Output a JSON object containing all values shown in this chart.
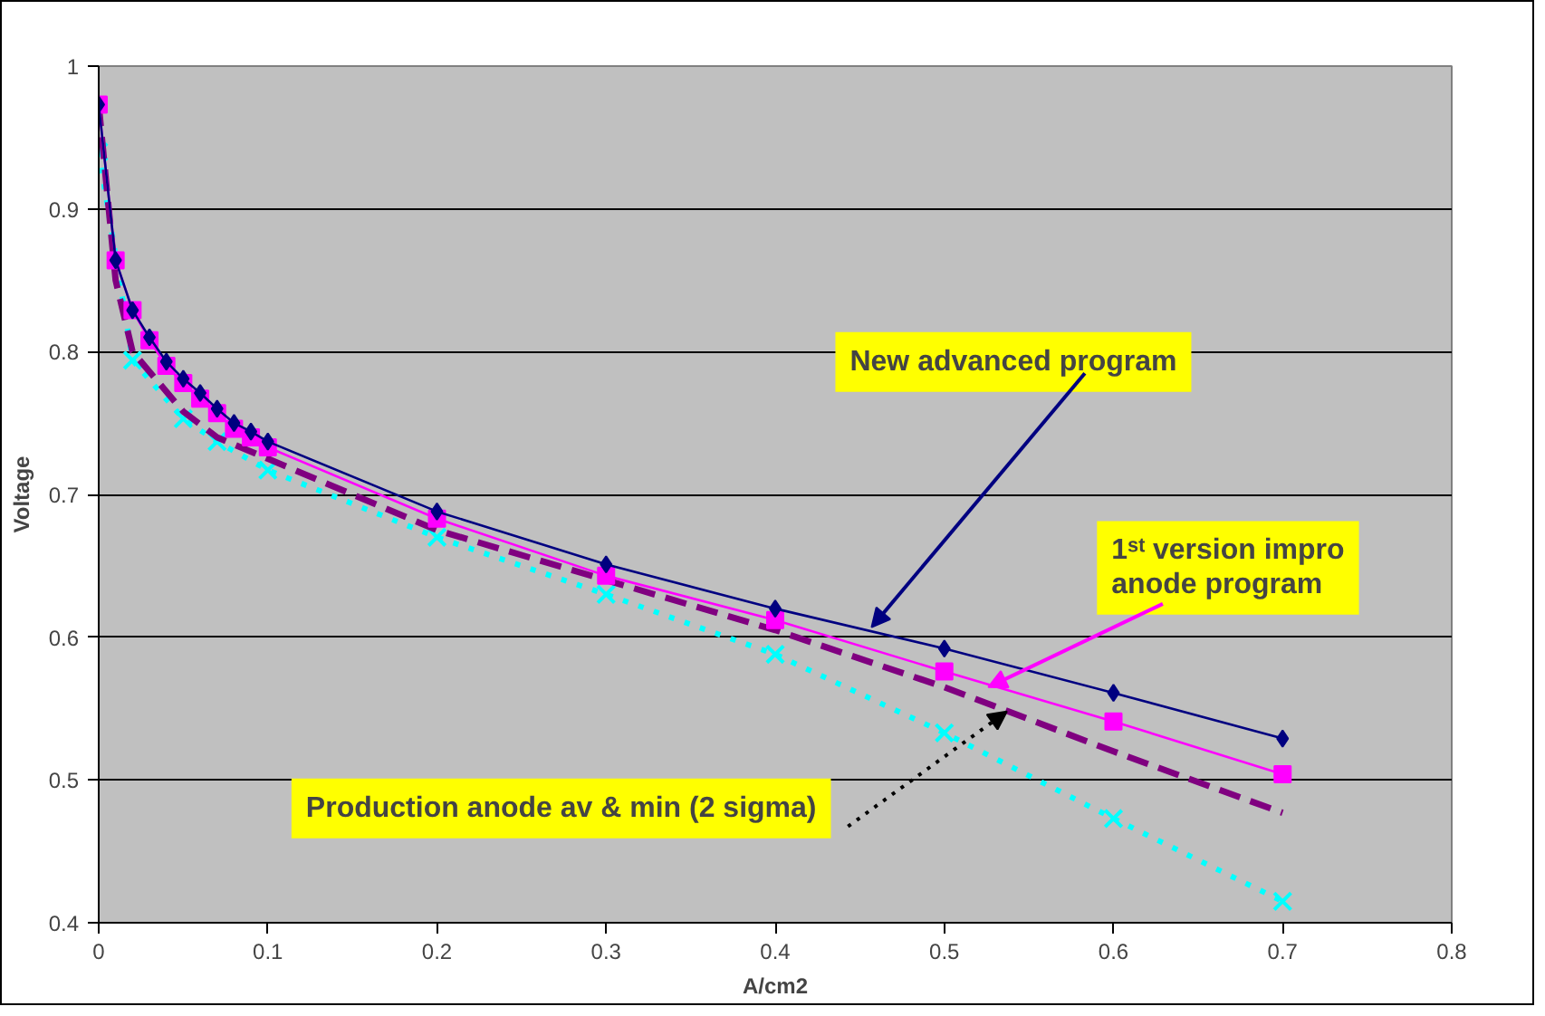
{
  "chart_data": {
    "type": "line",
    "xlabel": "A/cm2",
    "ylabel": "Voltage",
    "xlim": [
      0,
      0.8
    ],
    "xticks": [
      0,
      0.1,
      0.2,
      0.3,
      0.4,
      0.5,
      0.6,
      0.7,
      0.8
    ],
    "ylim": [
      0.4,
      1
    ],
    "yticks": [
      0.4,
      0.5,
      0.6,
      0.7,
      0.8,
      0.9,
      1
    ],
    "grid": "y",
    "series": [
      {
        "color": "#000080",
        "marker": "diamond",
        "line_style": "solid",
        "x": [
          0,
          0.01,
          0.02,
          0.03,
          0.04,
          0.05,
          0.06,
          0.07,
          0.08,
          0.09,
          0.1,
          0.2,
          0.3,
          0.4,
          0.5,
          0.6,
          0.7
        ],
        "values": [
          0.973,
          0.864,
          0.829,
          0.81,
          0.793,
          0.781,
          0.771,
          0.76,
          0.75,
          0.744,
          0.737,
          0.688,
          0.651,
          0.62,
          0.592,
          0.561,
          0.529
        ]
      },
      {
        "color": "#ff00ff",
        "marker": "square",
        "line_style": "solid",
        "x": [
          0,
          0.01,
          0.02,
          0.03,
          0.04,
          0.05,
          0.06,
          0.07,
          0.08,
          0.09,
          0.1,
          0.2,
          0.3,
          0.4,
          0.5,
          0.6,
          0.7
        ],
        "values": [
          0.973,
          0.864,
          0.829,
          0.808,
          0.79,
          0.778,
          0.767,
          0.757,
          0.746,
          0.74,
          0.733,
          0.683,
          0.643,
          0.612,
          0.576,
          0.541,
          0.504
        ]
      },
      {
        "color": "#800080",
        "marker": "none",
        "line_style": "dashed",
        "x": [
          0,
          0.01,
          0.02,
          0.05,
          0.07,
          0.1,
          0.2,
          0.3,
          0.4,
          0.5,
          0.6,
          0.7
        ],
        "values": [
          0.973,
          0.85,
          0.8,
          0.758,
          0.74,
          0.725,
          0.675,
          0.64,
          0.605,
          0.565,
          0.52,
          0.477
        ]
      },
      {
        "color": "#00ffff",
        "marker": "cross",
        "line_style": "dotted",
        "x": [
          0,
          0.02,
          0.05,
          0.07,
          0.1,
          0.2,
          0.3,
          0.4,
          0.5,
          0.6,
          0.7
        ],
        "values": [
          0.94,
          0.794,
          0.753,
          0.737,
          0.717,
          0.67,
          0.63,
          0.588,
          0.533,
          0.473,
          0.415
        ]
      }
    ],
    "annotations": [
      {
        "text": "New advanced program",
        "x": 0.457,
        "y": 0.607
      },
      {
        "text": "1ˢᵗ version impro\nanode program",
        "x": 0.526,
        "y": 0.565
      },
      {
        "text": "Production anode av & min (2 sigma)",
        "x": 0.537,
        "y": 0.548
      }
    ]
  }
}
